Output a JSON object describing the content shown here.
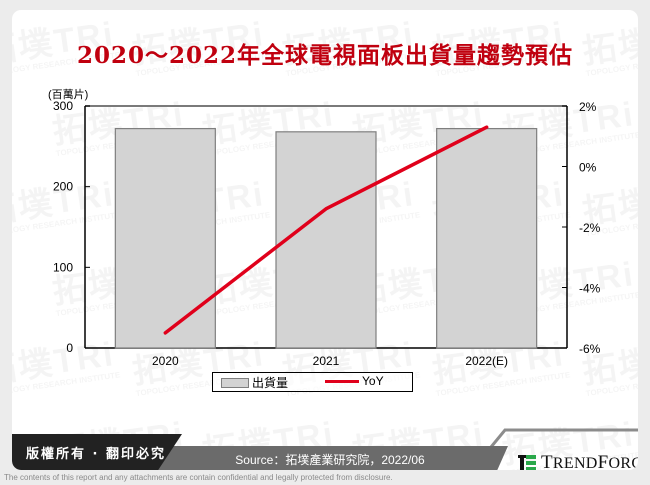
{
  "title": "2020～2022年全球電視面板出貨量趨勢預估",
  "chart_data": {
    "type": "bar+line",
    "title": "2020～2022年全球電視面板出貨量趨勢預估",
    "categories": [
      "2020",
      "2021",
      "2022(E)"
    ],
    "series": [
      {
        "name": "出貨量",
        "type": "bar",
        "axis": "left",
        "values": [
          272,
          268,
          272
        ]
      },
      {
        "name": "YoY",
        "type": "line",
        "axis": "right",
        "values": [
          -5.5,
          -1.4,
          1.3
        ],
        "unit": "%"
      }
    ],
    "left_axis": {
      "label": "(百萬片)",
      "ylim": [
        0,
        300
      ],
      "ticks": [
        "0",
        "100",
        "200",
        "300"
      ]
    },
    "right_axis": {
      "ylim": [
        -6,
        2
      ],
      "ticks": [
        "-6%",
        "-4%",
        "-2%",
        "0%",
        "2%"
      ]
    },
    "legend_position": "bottom",
    "grid": false
  },
  "colors": {
    "title": "#c0000f",
    "bar_fill": "#d3d3d3",
    "bar_border": "#7f7f7f",
    "line": "#e0001b"
  },
  "legend": {
    "bar_label": "出貨量",
    "line_label": "YoY"
  },
  "footer": {
    "copyright": "版權所有 · 翻印必究",
    "source": "Source：拓墣產業研究院，2022/06",
    "brand": "TrendForce",
    "disclaimer": "The contents of this report and any attachments are contain confidential and legally protected from disclosure."
  },
  "watermark": {
    "text": "拓墣TRi",
    "subtext": "TOPOLOGY RESEARCH INSTITUTE"
  }
}
